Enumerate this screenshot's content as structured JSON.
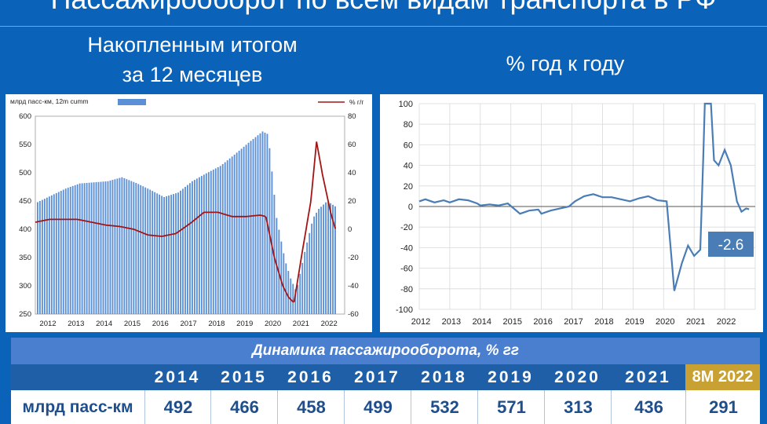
{
  "page": {
    "title": "Пассажирооборот по всем видам транспорта в РФ",
    "left_subtitle_line1": "Накопленным итогом",
    "left_subtitle_line2": "за 12 месяцев",
    "right_subtitle": "% год к году"
  },
  "colors": {
    "bar": "#5b8fd6",
    "line_red": "#a31515",
    "line_blue": "#4a7db5",
    "header_bg": "#0a63b8",
    "highlight": "#c9a032"
  },
  "chart_data": [
    {
      "type": "bar",
      "legend_bar": "млрд пасс-км, 12m cumm",
      "legend_line": "% г/г",
      "x_labels": [
        "2012",
        "2013",
        "2014",
        "2015",
        "2016",
        "2017",
        "2018",
        "2019",
        "2020",
        "2021",
        "2022"
      ],
      "ylim_left": [
        250,
        600
      ],
      "yticks_left": [
        "600",
        "550",
        "500",
        "450",
        "400",
        "350",
        "300",
        "250"
      ],
      "ylim_right": [
        -60,
        80
      ],
      "yticks_right": [
        "80",
        "60",
        "40",
        "20",
        "0",
        "-20",
        "-40",
        "-60"
      ],
      "bar_series": [
        {
          "x": 2012.0,
          "y": 448
        },
        {
          "x": 2012.5,
          "y": 460
        },
        {
          "x": 2013.0,
          "y": 472
        },
        {
          "x": 2013.5,
          "y": 481
        },
        {
          "x": 2014.0,
          "y": 483
        },
        {
          "x": 2014.5,
          "y": 485
        },
        {
          "x": 2015.0,
          "y": 492
        },
        {
          "x": 2015.5,
          "y": 482
        },
        {
          "x": 2016.0,
          "y": 470
        },
        {
          "x": 2016.5,
          "y": 457
        },
        {
          "x": 2017.0,
          "y": 465
        },
        {
          "x": 2017.5,
          "y": 485
        },
        {
          "x": 2018.0,
          "y": 499
        },
        {
          "x": 2018.5,
          "y": 512
        },
        {
          "x": 2019.0,
          "y": 532
        },
        {
          "x": 2019.5,
          "y": 553
        },
        {
          "x": 2020.0,
          "y": 573
        },
        {
          "x": 2020.2,
          "y": 568
        },
        {
          "x": 2020.5,
          "y": 420
        },
        {
          "x": 2020.8,
          "y": 345
        },
        {
          "x": 2021.0,
          "y": 313
        },
        {
          "x": 2021.2,
          "y": 290
        },
        {
          "x": 2021.5,
          "y": 360
        },
        {
          "x": 2021.8,
          "y": 420
        },
        {
          "x": 2022.0,
          "y": 436
        },
        {
          "x": 2022.3,
          "y": 450
        },
        {
          "x": 2022.6,
          "y": 440
        }
      ],
      "line_series": [
        {
          "x": 2012.0,
          "y": 5
        },
        {
          "x": 2012.5,
          "y": 7
        },
        {
          "x": 2013.0,
          "y": 7
        },
        {
          "x": 2013.5,
          "y": 7
        },
        {
          "x": 2014.0,
          "y": 5
        },
        {
          "x": 2014.5,
          "y": 3
        },
        {
          "x": 2015.0,
          "y": 2
        },
        {
          "x": 2015.5,
          "y": 0
        },
        {
          "x": 2016.0,
          "y": -4
        },
        {
          "x": 2016.5,
          "y": -5
        },
        {
          "x": 2017.0,
          "y": -3
        },
        {
          "x": 2017.5,
          "y": 4
        },
        {
          "x": 2018.0,
          "y": 12
        },
        {
          "x": 2018.5,
          "y": 12
        },
        {
          "x": 2019.0,
          "y": 9
        },
        {
          "x": 2019.5,
          "y": 9
        },
        {
          "x": 2020.0,
          "y": 10
        },
        {
          "x": 2020.2,
          "y": 9
        },
        {
          "x": 2020.5,
          "y": -20
        },
        {
          "x": 2020.8,
          "y": -40
        },
        {
          "x": 2021.0,
          "y": -48
        },
        {
          "x": 2021.2,
          "y": -52
        },
        {
          "x": 2021.5,
          "y": -15
        },
        {
          "x": 2021.8,
          "y": 20
        },
        {
          "x": 2022.0,
          "y": 62
        },
        {
          "x": 2022.2,
          "y": 40
        },
        {
          "x": 2022.5,
          "y": 12
        },
        {
          "x": 2022.7,
          "y": -2
        }
      ]
    },
    {
      "type": "line",
      "x_labels": [
        "2012",
        "2013",
        "2014",
        "2015",
        "2016",
        "2017",
        "2018",
        "2019",
        "2020",
        "2021",
        "2022"
      ],
      "ylim": [
        -100,
        100
      ],
      "yticks": [
        "100",
        "80",
        "60",
        "40",
        "20",
        "0",
        "-20",
        "-40",
        "-60",
        "-80",
        "-100"
      ],
      "annotation": "-2.6",
      "series": [
        {
          "x": 2012.0,
          "y": 5
        },
        {
          "x": 2012.2,
          "y": 7
        },
        {
          "x": 2012.5,
          "y": 4
        },
        {
          "x": 2012.8,
          "y": 6
        },
        {
          "x": 2013.0,
          "y": 4
        },
        {
          "x": 2013.3,
          "y": 7
        },
        {
          "x": 2013.6,
          "y": 6
        },
        {
          "x": 2013.9,
          "y": 3
        },
        {
          "x": 2014.0,
          "y": 1
        },
        {
          "x": 2014.3,
          "y": 2
        },
        {
          "x": 2014.6,
          "y": 1
        },
        {
          "x": 2014.9,
          "y": 3
        },
        {
          "x": 2015.1,
          "y": -2
        },
        {
          "x": 2015.3,
          "y": -7
        },
        {
          "x": 2015.6,
          "y": -4
        },
        {
          "x": 2015.9,
          "y": -3
        },
        {
          "x": 2016.0,
          "y": -7
        },
        {
          "x": 2016.3,
          "y": -4
        },
        {
          "x": 2016.6,
          "y": -2
        },
        {
          "x": 2016.9,
          "y": 0
        },
        {
          "x": 2017.1,
          "y": 5
        },
        {
          "x": 2017.4,
          "y": 10
        },
        {
          "x": 2017.7,
          "y": 12
        },
        {
          "x": 2018.0,
          "y": 9
        },
        {
          "x": 2018.3,
          "y": 9
        },
        {
          "x": 2018.6,
          "y": 7
        },
        {
          "x": 2018.9,
          "y": 5
        },
        {
          "x": 2019.2,
          "y": 8
        },
        {
          "x": 2019.5,
          "y": 10
        },
        {
          "x": 2019.8,
          "y": 6
        },
        {
          "x": 2020.1,
          "y": 5
        },
        {
          "x": 2020.2,
          "y": -30
        },
        {
          "x": 2020.35,
          "y": -82
        },
        {
          "x": 2020.6,
          "y": -55
        },
        {
          "x": 2020.8,
          "y": -38
        },
        {
          "x": 2021.0,
          "y": -48
        },
        {
          "x": 2021.2,
          "y": -42
        },
        {
          "x": 2021.3,
          "y": 50
        },
        {
          "x": 2021.35,
          "y": 100
        },
        {
          "x": 2021.55,
          "y": 100
        },
        {
          "x": 2021.65,
          "y": 45
        },
        {
          "x": 2021.8,
          "y": 40
        },
        {
          "x": 2022.0,
          "y": 55
        },
        {
          "x": 2022.2,
          "y": 40
        },
        {
          "x": 2022.4,
          "y": 5
        },
        {
          "x": 2022.55,
          "y": -5
        },
        {
          "x": 2022.7,
          "y": -2
        },
        {
          "x": 2022.8,
          "y": -2.6
        }
      ]
    }
  ],
  "table": {
    "header": "Динамика пассажирооборота, % гг",
    "row_label": "млрд пасс-км",
    "years": [
      "2014",
      "2015",
      "2016",
      "2017",
      "2018",
      "2019",
      "2020",
      "2021",
      "8M 2022"
    ],
    "values": [
      "492",
      "466",
      "458",
      "499",
      "532",
      "571",
      "313",
      "436",
      "291"
    ]
  }
}
